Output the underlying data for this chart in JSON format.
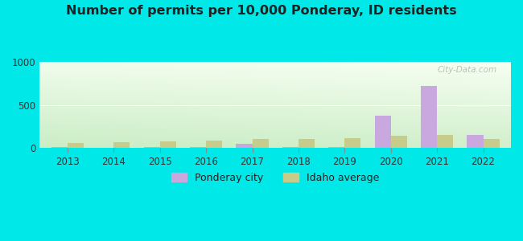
{
  "title": "Number of permits per 10,000 Ponderay, ID residents",
  "years": [
    2013,
    2014,
    2015,
    2016,
    2017,
    2018,
    2019,
    2020,
    2021,
    2022
  ],
  "ponderay_values": [
    10,
    0,
    10,
    8,
    50,
    12,
    12,
    375,
    720,
    150
  ],
  "idaho_values": [
    60,
    65,
    80,
    90,
    100,
    105,
    115,
    145,
    150,
    105
  ],
  "ponderay_color": "#c9a8e0",
  "idaho_color": "#c8cc8a",
  "bg_outer": "#00e8e8",
  "ylim": [
    0,
    1000
  ],
  "yticks": [
    0,
    500,
    1000
  ],
  "title_fontsize": 11.5,
  "bar_width": 0.35,
  "legend_ponderay": "Ponderay city",
  "legend_idaho": "Idaho average",
  "watermark": "City-Data.com",
  "grad_top": "#f8fdf4",
  "grad_bottom": "#c8e8c0"
}
